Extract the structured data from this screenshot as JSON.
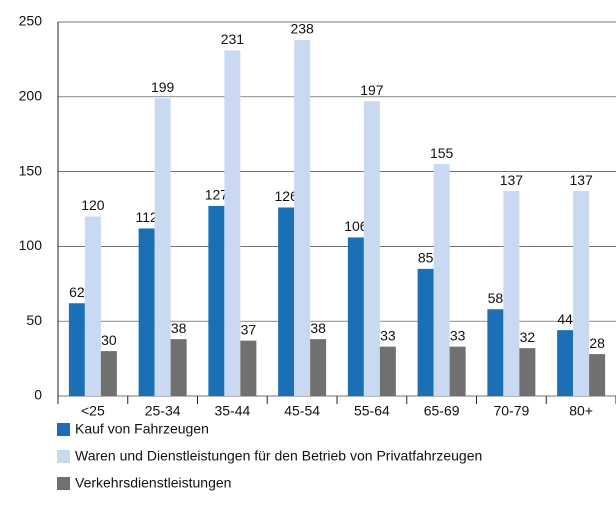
{
  "chart_data": {
    "type": "bar",
    "categories": [
      "<25",
      "25-34",
      "35-44",
      "45-54",
      "55-64",
      "65-69",
      "70-79",
      "80+"
    ],
    "series": [
      {
        "name": "Kauf von Fahrzeugen",
        "color": "#1a6fb5",
        "values": [
          62,
          112,
          127,
          126,
          106,
          85,
          58,
          44
        ]
      },
      {
        "name": "Waren und Dienstleistungen für den Betrieb von Privatfahrzeugen",
        "color": "#c9d9f2",
        "values": [
          120,
          199,
          231,
          238,
          197,
          155,
          137,
          137
        ]
      },
      {
        "name": "Verkehrsdienstleistungen",
        "color": "#707070",
        "values": [
          30,
          38,
          37,
          38,
          33,
          33,
          32,
          28
        ]
      }
    ],
    "ylim": [
      0,
      250
    ],
    "yticks": [
      0,
      50,
      100,
      150,
      200,
      250
    ],
    "grid": true
  }
}
